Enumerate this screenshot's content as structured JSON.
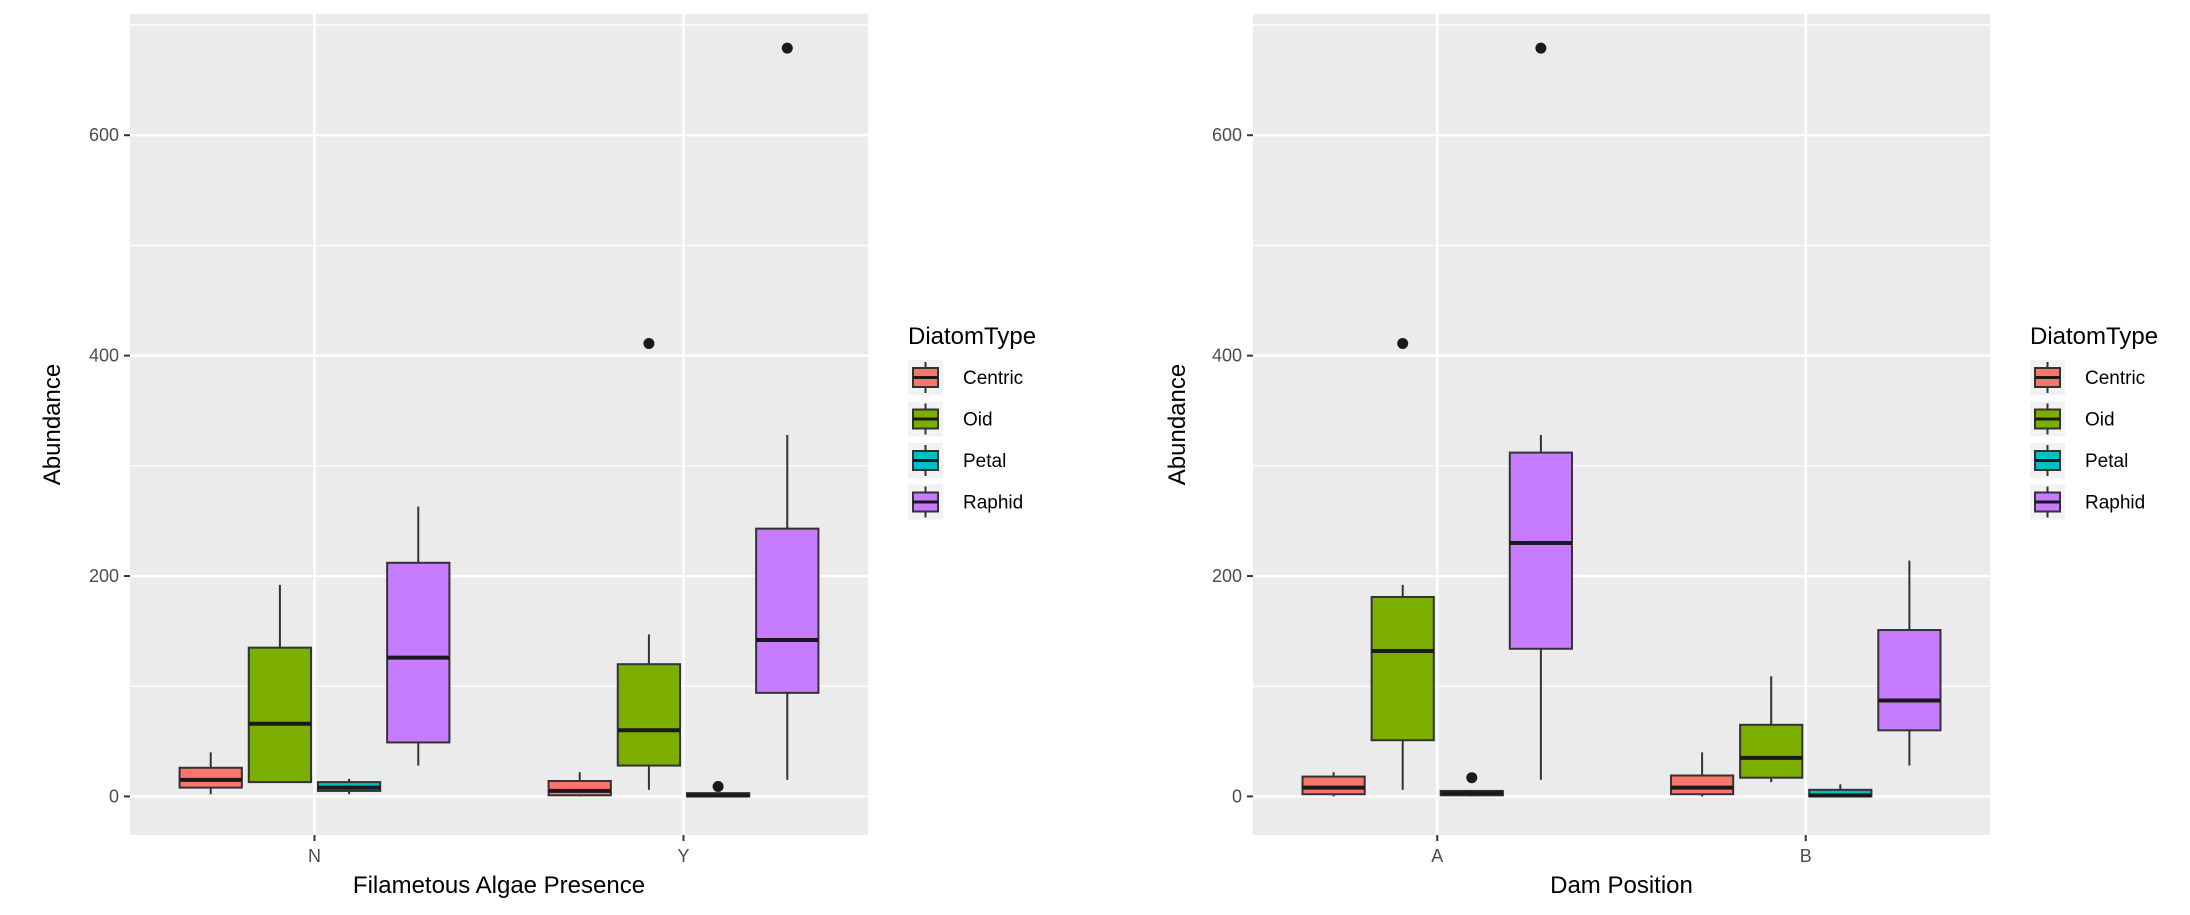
{
  "chart_data": [
    {
      "type": "boxplot",
      "xlabel": "Filametous Algae Presence",
      "ylabel": "Abundance",
      "ylim": [
        -35,
        710
      ],
      "yticks": [
        0,
        200,
        400,
        600
      ],
      "categories": [
        "N",
        "Y"
      ],
      "legend_title": "DiatomType",
      "legend_position": "right",
      "series": [
        {
          "name": "Centric",
          "color": "#F8766D",
          "boxes": [
            {
              "category": "N",
              "lower": 2,
              "q1": 8,
              "median": 15,
              "q3": 26,
              "upper": 40,
              "outliers": []
            },
            {
              "category": "Y",
              "lower": 0,
              "q1": 1,
              "median": 5,
              "q3": 14,
              "upper": 22,
              "outliers": []
            }
          ]
        },
        {
          "name": "Oid",
          "color": "#7CAE00",
          "boxes": [
            {
              "category": "N",
              "lower": 13,
              "q1": 13,
              "median": 66,
              "q3": 135,
              "upper": 192,
              "outliers": []
            },
            {
              "category": "Y",
              "lower": 6,
              "q1": 28,
              "median": 60,
              "q3": 120,
              "upper": 147,
              "outliers": [
                411
              ]
            }
          ]
        },
        {
          "name": "Petal",
          "color": "#00BFC4",
          "boxes": [
            {
              "category": "N",
              "lower": 2,
              "q1": 5,
              "median": 8,
              "q3": 13,
              "upper": 16,
              "outliers": []
            },
            {
              "category": "Y",
              "lower": 0,
              "q1": 0,
              "median": 1,
              "q3": 3,
              "upper": 4,
              "outliers": [
                9
              ]
            }
          ]
        },
        {
          "name": "Raphid",
          "color": "#C77CFF",
          "boxes": [
            {
              "category": "N",
              "lower": 28,
              "q1": 49,
              "median": 126,
              "q3": 212,
              "upper": 263,
              "outliers": []
            },
            {
              "category": "Y",
              "lower": 15,
              "q1": 94,
              "median": 142,
              "q3": 243,
              "upper": 328,
              "outliers": [
                679
              ]
            }
          ]
        }
      ]
    },
    {
      "type": "boxplot",
      "xlabel": "Dam Position",
      "ylabel": "Abundance",
      "ylim": [
        -35,
        710
      ],
      "yticks": [
        0,
        200,
        400,
        600
      ],
      "categories": [
        "A",
        "B"
      ],
      "legend_title": "DiatomType",
      "legend_position": "right",
      "series": [
        {
          "name": "Centric",
          "color": "#F8766D",
          "boxes": [
            {
              "category": "A",
              "lower": 0,
              "q1": 2,
              "median": 8,
              "q3": 18,
              "upper": 22,
              "outliers": []
            },
            {
              "category": "B",
              "lower": 0,
              "q1": 2,
              "median": 8,
              "q3": 19,
              "upper": 40,
              "outliers": []
            }
          ]
        },
        {
          "name": "Oid",
          "color": "#7CAE00",
          "boxes": [
            {
              "category": "A",
              "lower": 6,
              "q1": 51,
              "median": 132,
              "q3": 181,
              "upper": 192,
              "outliers": [
                411
              ]
            },
            {
              "category": "B",
              "lower": 13,
              "q1": 17,
              "median": 35,
              "q3": 65,
              "upper": 109,
              "outliers": []
            }
          ]
        },
        {
          "name": "Petal",
          "color": "#00BFC4",
          "boxes": [
            {
              "category": "A",
              "lower": 0,
              "q1": 1,
              "median": 3,
              "q3": 5,
              "upper": 6,
              "outliers": [
                17
              ]
            },
            {
              "category": "B",
              "lower": 0,
              "q1": 0,
              "median": 1,
              "q3": 6,
              "upper": 11,
              "outliers": []
            }
          ]
        },
        {
          "name": "Raphid",
          "color": "#C77CFF",
          "boxes": [
            {
              "category": "A",
              "lower": 15,
              "q1": 134,
              "median": 230,
              "q3": 312,
              "upper": 328,
              "outliers": [
                679
              ]
            },
            {
              "category": "B",
              "lower": 28,
              "q1": 60,
              "median": 87,
              "q3": 151,
              "upper": 214,
              "outliers": []
            }
          ]
        }
      ]
    }
  ]
}
